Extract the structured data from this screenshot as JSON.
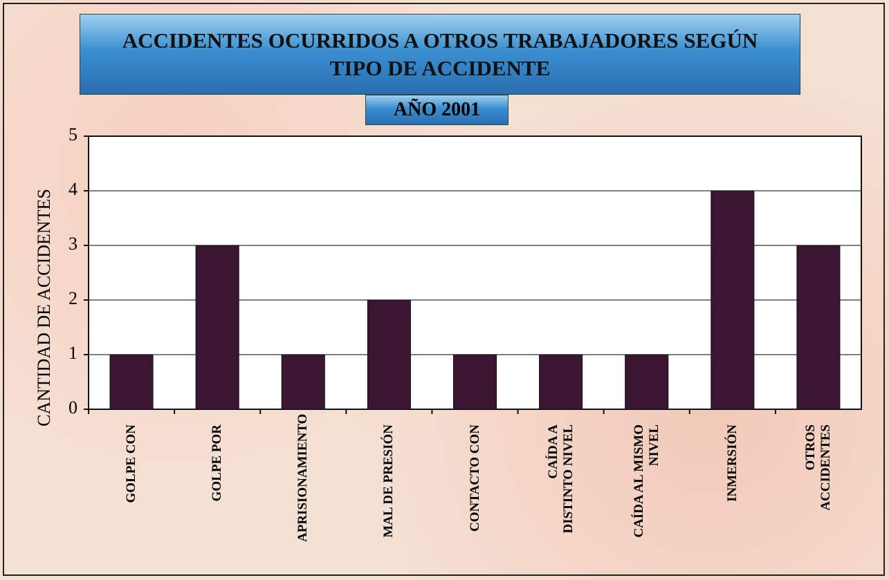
{
  "chart_data": {
    "type": "bar",
    "title": "ACCIDENTES OCURRIDOS A OTROS TRABAJADORES SEGÚN TIPO DE ACCIDENTE",
    "subtitle": "AÑO 2001",
    "y_label": "CANTIDAD DE ACCIDENTES",
    "categories": [
      "GOLPE CON",
      "GOLPE POR",
      "APRISIONAMIENTO",
      "MAL DE PRESIÓN",
      "CONTACTO CON",
      "CAÍDA A DISTINTO NIVEL",
      "CAÍDA AL MISMO NIVEL",
      "INMERSIÓN",
      "OTROS ACCIDENTES"
    ],
    "values": [
      1,
      3,
      1,
      2,
      1,
      1,
      1,
      4,
      3
    ],
    "color": "#3a1632",
    "ylim": [
      0,
      5
    ],
    "yticks": [
      0,
      1,
      2,
      3,
      4,
      5
    ],
    "grid": true
  }
}
